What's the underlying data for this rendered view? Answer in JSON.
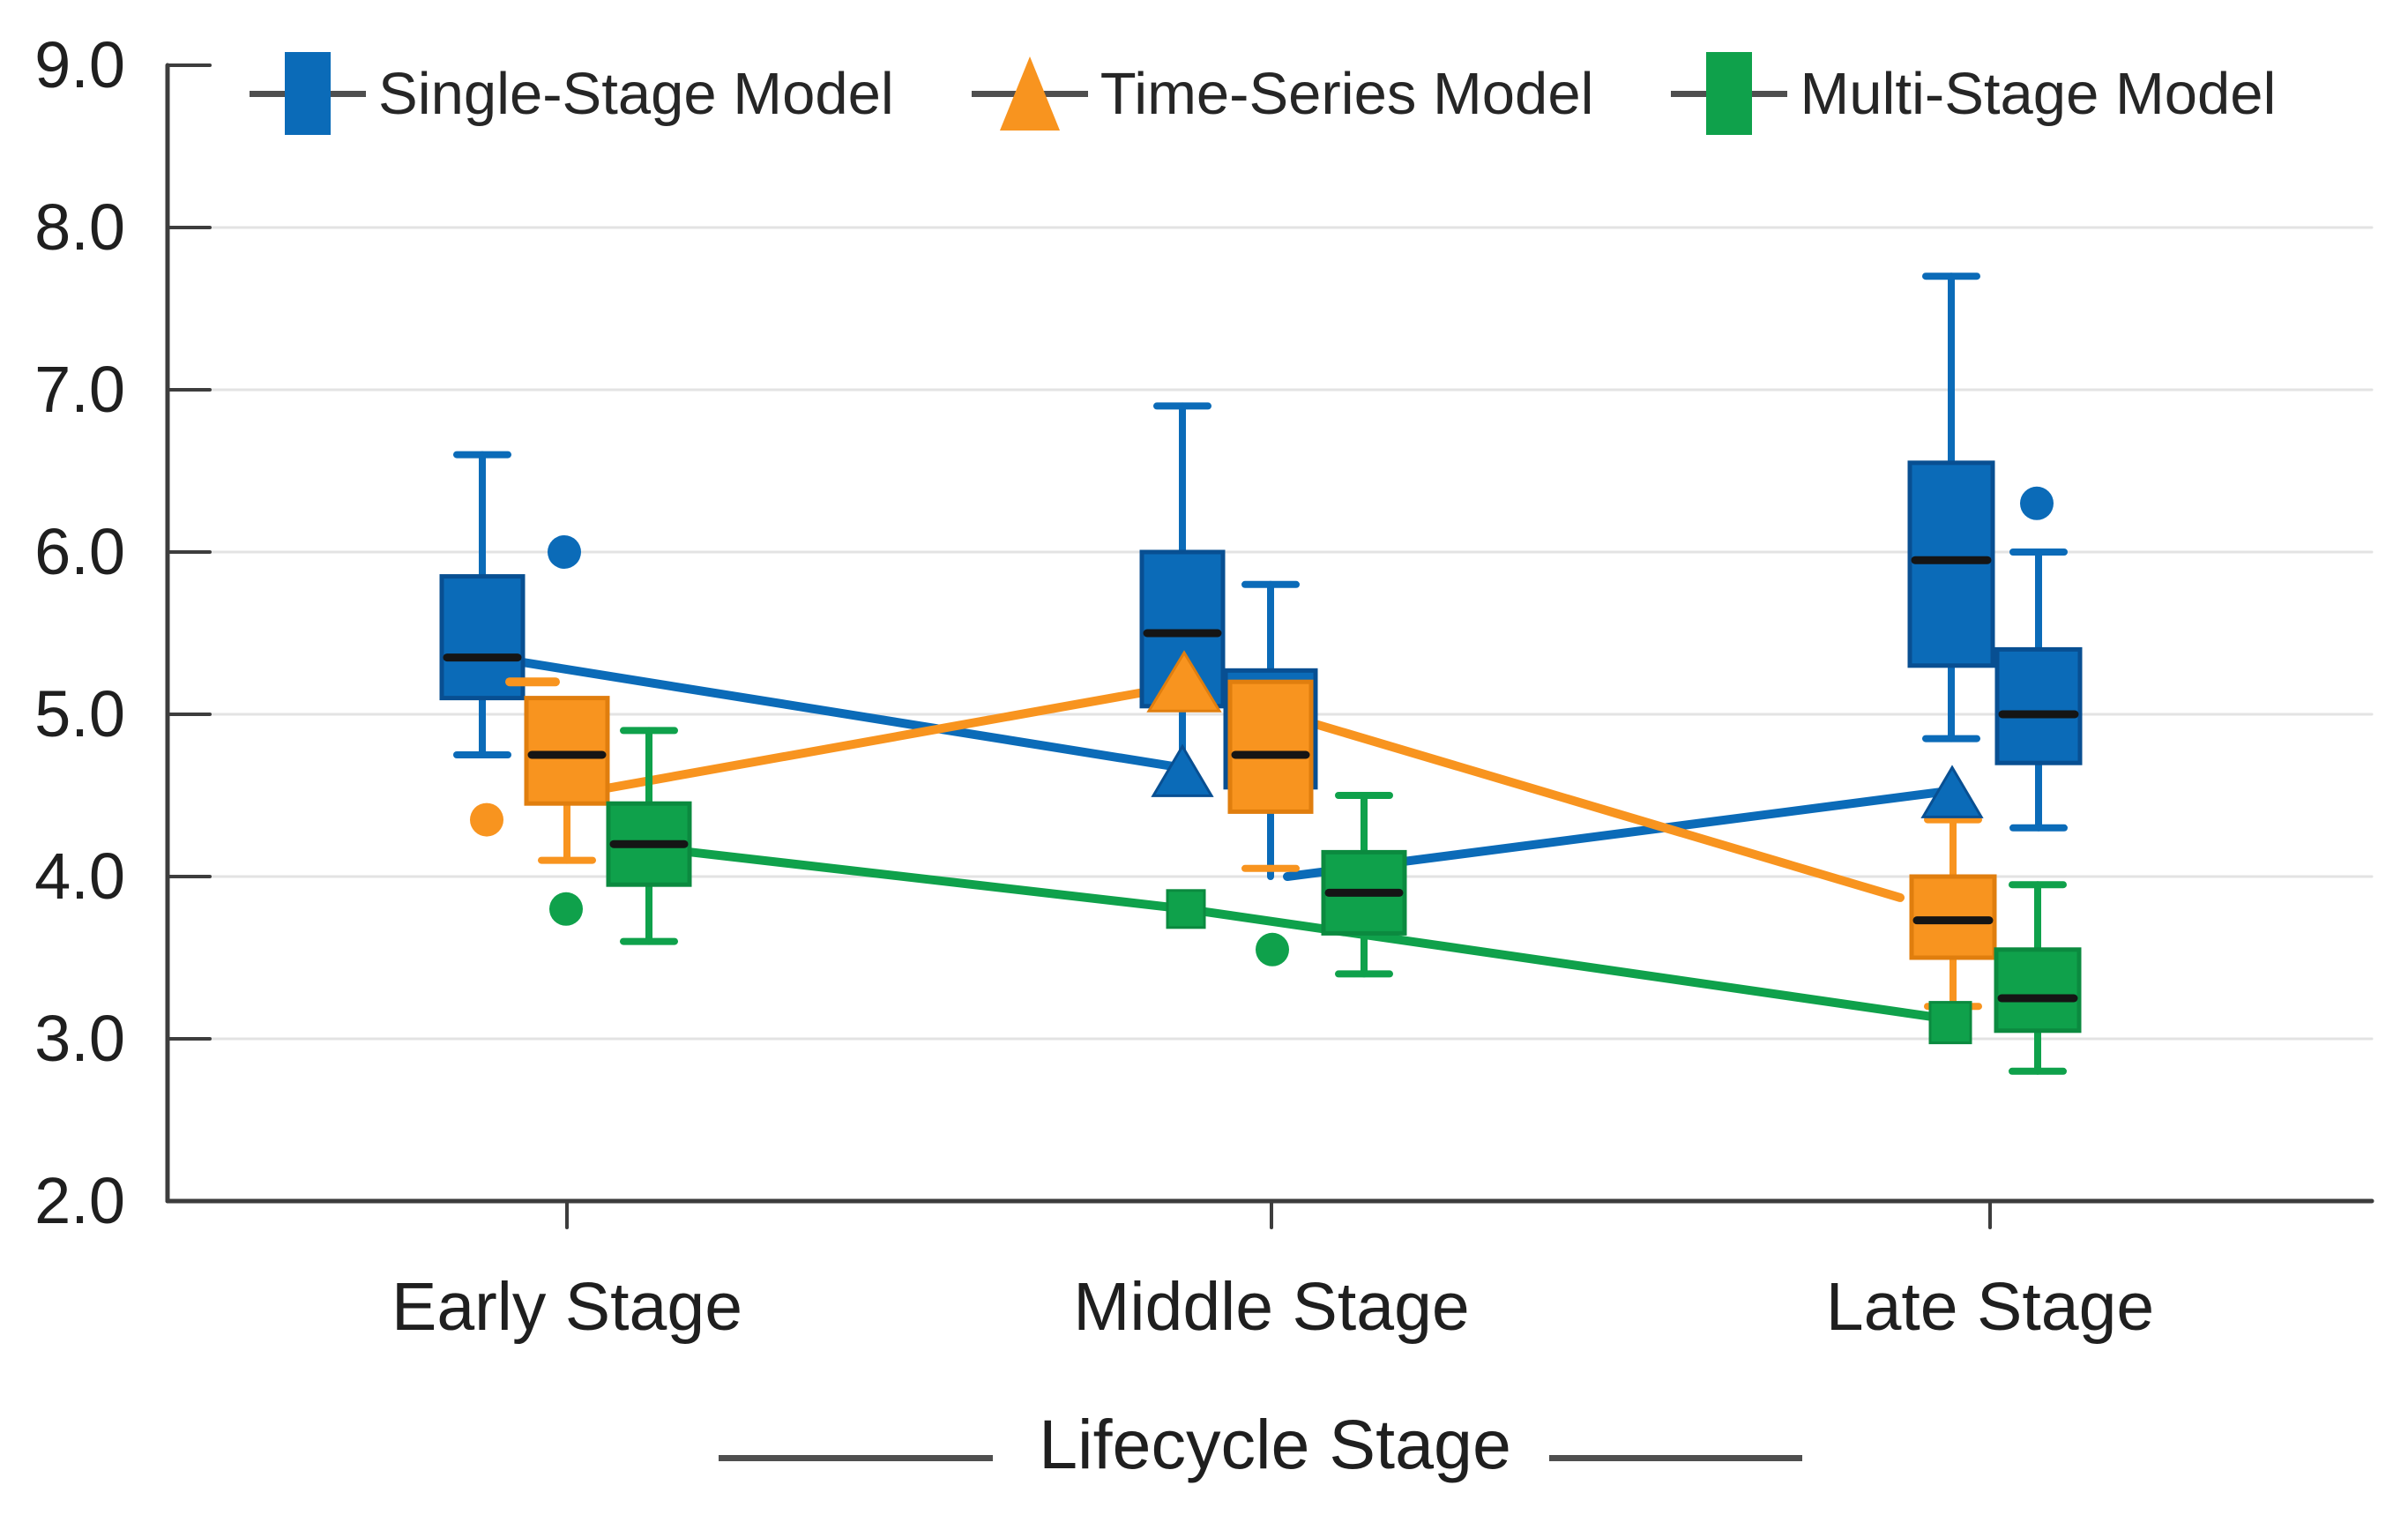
{
  "legend": {
    "items": [
      {
        "label": "Single-Stage Model",
        "marker": "box-square",
        "color": "#0b6bb8"
      },
      {
        "label": "Time-Series Model",
        "marker": "triangle",
        "color": "#f8941f"
      },
      {
        "label": "Multi-Stage Model",
        "marker": "box-square",
        "color": "#0fa14b"
      }
    ]
  },
  "axes": {
    "y_ticks": [
      "9.0",
      "8.0",
      "7.0",
      "6.0",
      "5.0",
      "4.0",
      "3.0",
      "2.0"
    ],
    "x_labels": [
      "Early Stage",
      "Middle Stage",
      "Late Stage"
    ],
    "x_title": "Lifecycle Stage"
  },
  "chart_data": {
    "type": "boxplot",
    "title": "",
    "xlabel": "Lifecycle Stage",
    "ylabel": "",
    "categories": [
      "Early Stage",
      "Middle Stage",
      "Late Stage"
    ],
    "ylim": [
      2.0,
      9.0
    ],
    "y_tick_values": [
      9,
      8,
      7,
      6,
      5,
      4,
      3,
      2
    ],
    "grid": "horizontal",
    "legend_position": "top",
    "layout": {
      "y_top": 74,
      "v_top": 9,
      "y_unit": 184,
      "left": 190,
      "right": 2690,
      "bottom": 1362,
      "cap_w": 58,
      "grid_values": [
        8,
        7,
        6,
        5,
        4,
        3
      ],
      "x_tick_positions": [
        643,
        1442,
        2257
      ],
      "x_tick_len": 30,
      "y_tick_len": 48,
      "grid_color": "#e3e3e3",
      "axis_color": "#3d3d3d",
      "median_color": "#151515"
    },
    "series": [
      {
        "name": "Single-Stage Model",
        "color": "#0b6bb8",
        "stroke": "#084f92",
        "boxes": [
          {
            "category": "Early Stage",
            "x": 547,
            "w": 92,
            "q1": 5.1,
            "med": 5.35,
            "q3": 5.85,
            "hi": 6.6,
            "lo": 4.75
          },
          {
            "category": "Middle Stage",
            "x": 1341,
            "w": 92,
            "q1": 5.05,
            "med": 5.5,
            "q3": 6.0,
            "hi": 6.9,
            "lo": 4.62,
            "lo_cap": false
          },
          {
            "category": "Middle Stage",
            "x": 1441,
            "w": 102,
            "q1": 4.55,
            "q3": 5.27,
            "hi": 5.8,
            "lo": 4.0,
            "lo_cap": false,
            "ghost": true
          },
          {
            "category": "Late Stage",
            "x": 2213,
            "w": 94,
            "q1": 5.3,
            "med": 5.95,
            "q3": 6.55,
            "hi": 7.7,
            "lo": 4.85
          },
          {
            "category": "Late Stage",
            "x": 2312,
            "w": 94,
            "q1": 4.7,
            "med": 5.0,
            "q3": 5.4,
            "hi": 6.0,
            "lo": 4.3
          }
        ],
        "outliers": [
          {
            "x": 640,
            "v": 6.0
          },
          {
            "x": 2310,
            "v": 6.3
          }
        ],
        "trend": [
          [
            [
              593,
              5.32
            ],
            [
              1341,
              4.67
            ]
          ],
          [
            [
              1460,
              4.0
            ],
            [
              2214,
              4.53
            ]
          ]
        ],
        "markers": [
          {
            "t": "tri",
            "x": 1341,
            "v": 4.65,
            "w": 66,
            "h": 56
          },
          {
            "t": "tri",
            "x": 2214,
            "v": 4.52,
            "w": 66,
            "h": 56
          }
        ]
      },
      {
        "name": "Time-Series Model",
        "color": "#f8941f",
        "stroke": "#e07e0e",
        "boxes": [
          {
            "category": "Early Stage",
            "x": 643,
            "w": 92,
            "q1": 4.45,
            "med": 4.75,
            "q3": 5.1,
            "lo": 4.1,
            "stub": {
              "x": 604,
              "v": 5.2
            }
          },
          {
            "category": "Middle Stage",
            "x": 1441,
            "w": 92,
            "q1": 4.4,
            "med": 4.75,
            "q3": 5.2,
            "lo": 4.05,
            "lo_line": false
          },
          {
            "category": "Late Stage",
            "x": 2215,
            "w": 94,
            "q1": 3.5,
            "med": 3.73,
            "q3": 4.0,
            "hi": 4.35,
            "lo": 3.2
          }
        ],
        "outliers": [
          {
            "x": 552,
            "v": 4.35
          }
        ],
        "trend": [
          [
            [
              643,
              4.5
            ],
            [
              1343,
              5.18
            ]
          ],
          [
            [
              1343,
              5.18
            ],
            [
              2155,
              3.87
            ]
          ]
        ],
        "markers": [
          {
            "t": "tri",
            "x": 1343,
            "v": 5.2,
            "w": 80,
            "h": 66
          }
        ]
      },
      {
        "name": "Multi-Stage Model",
        "color": "#0fa14b",
        "stroke": "#0b8a3f",
        "boxes": [
          {
            "category": "Early Stage",
            "x": 736,
            "w": 92,
            "q1": 3.95,
            "med": 4.2,
            "q3": 4.45,
            "hi": 4.9,
            "lo": 3.6
          },
          {
            "category": "Middle Stage",
            "x": 1547,
            "w": 92,
            "q1": 3.65,
            "med": 3.9,
            "q3": 4.15,
            "hi": 4.5,
            "lo": 3.4
          },
          {
            "category": "Late Stage",
            "x": 2311,
            "w": 94,
            "q1": 3.05,
            "med": 3.25,
            "q3": 3.55,
            "hi": 3.95,
            "lo": 2.8
          }
        ],
        "outliers": [
          {
            "x": 642,
            "v": 3.8
          },
          {
            "x": 1443,
            "v": 3.55
          }
        ],
        "trend": [
          [
            [
              736,
              4.18
            ],
            [
              1345,
              3.8
            ]
          ],
          [
            [
              1345,
              3.8
            ],
            [
              2212,
              3.12
            ]
          ]
        ],
        "markers": [
          {
            "t": "sq",
            "x": 1345,
            "v": 3.8,
            "s": 42
          },
          {
            "t": "sq",
            "x": 2212,
            "v": 3.1,
            "s": 46
          }
        ]
      }
    ]
  }
}
